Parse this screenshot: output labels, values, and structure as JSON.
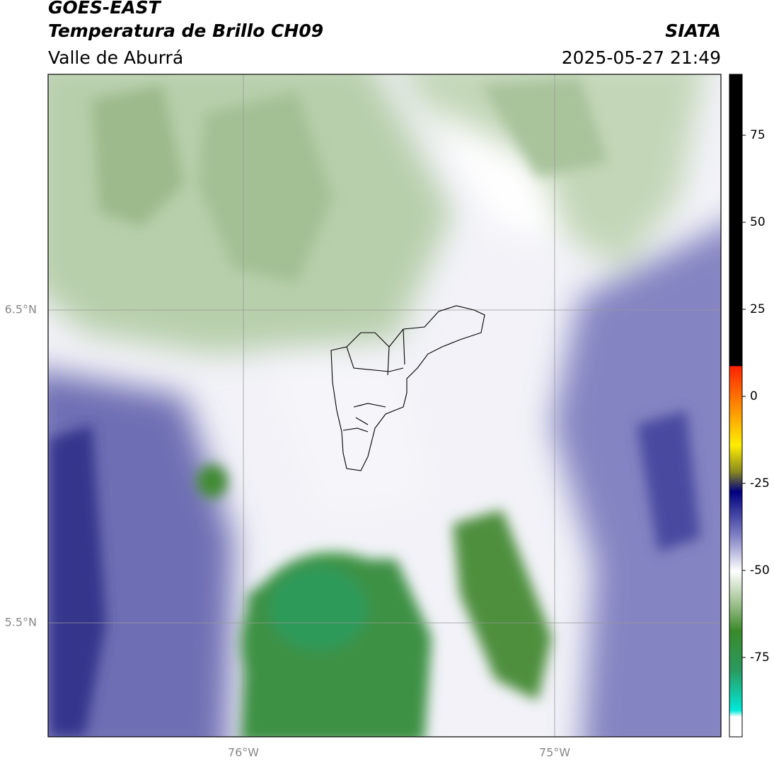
{
  "header": {
    "title": "GOES-EAST",
    "subtitle": "Temperatura de Brillo CH09",
    "region": "Valle de Aburrá",
    "source": "SIATA",
    "datetime": "2025-05-27 21:49"
  },
  "map": {
    "lat_labels": [
      "6.5°N",
      "5.5°N"
    ],
    "lon_labels": [
      "76°W",
      "75°W"
    ]
  },
  "colorbar": {
    "range": [
      -97.8,
      92.5
    ],
    "ticks": [
      75,
      50,
      25,
      0,
      -25,
      -50,
      -75
    ]
  }
}
